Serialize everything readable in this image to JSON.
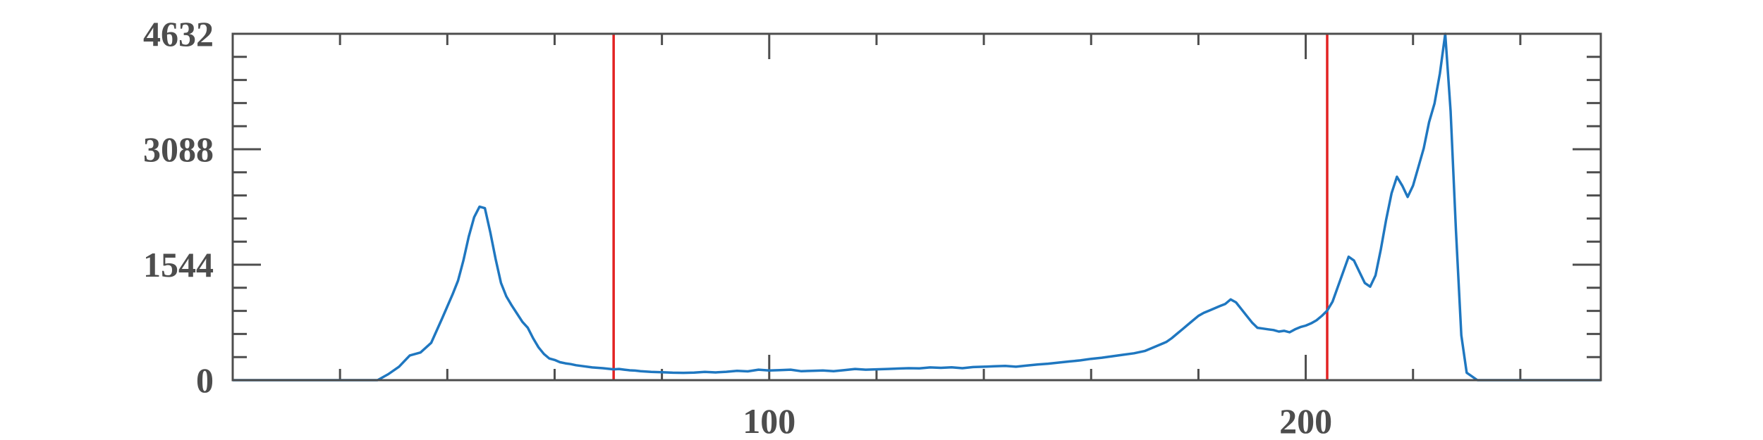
{
  "chart_data": {
    "type": "line",
    "title": "",
    "xlabel": "",
    "ylabel": "",
    "xlim": [
      0,
      255
    ],
    "ylim": [
      0,
      4632
    ],
    "x_ticks": [
      100,
      200
    ],
    "x_tick_labels": [
      "100",
      "200"
    ],
    "y_ticks": [
      0,
      1544,
      3088,
      4632
    ],
    "y_tick_labels": [
      "0",
      "1544",
      "3088",
      "4632"
    ],
    "x_minor_ticks": [
      20,
      40,
      60,
      80,
      120,
      140,
      160,
      180,
      220,
      240
    ],
    "y_minor_ticks": [
      308.8,
      617.6,
      926.4,
      1235.2,
      1852.8,
      2161.6,
      2470.4,
      2779.2,
      3396.8,
      3705.6,
      4014.4,
      4323.2
    ],
    "grid": false,
    "line_color": "#1f77c0",
    "threshold_color": "#e32222",
    "thresholds": [
      71,
      204
    ],
    "series": [
      {
        "x": [
          0,
          10,
          20,
          27,
          29,
          31,
          33,
          35,
          37,
          39,
          41,
          42,
          43,
          44,
          45,
          46,
          47,
          48,
          49,
          50,
          51,
          52,
          53,
          54,
          55,
          56,
          57,
          58,
          59,
          60,
          61,
          62,
          63,
          64,
          65,
          67,
          69,
          71,
          72,
          73,
          74,
          75,
          76,
          77,
          78,
          79,
          80,
          82,
          84,
          86,
          88,
          90,
          92,
          94,
          96,
          98,
          100,
          102,
          104,
          106,
          108,
          110,
          112,
          114,
          116,
          118,
          120,
          122,
          124,
          126,
          128,
          130,
          132,
          134,
          136,
          138,
          140,
          142,
          144,
          146,
          148,
          150,
          152,
          154,
          156,
          158,
          160,
          162,
          164,
          166,
          168,
          170,
          172,
          174,
          175,
          176,
          177,
          178,
          179,
          180,
          181,
          182,
          183,
          184,
          185,
          186,
          187,
          188,
          189,
          190,
          191,
          192,
          193,
          194,
          195,
          196,
          197,
          198,
          199,
          200,
          201,
          202,
          203,
          204,
          205,
          206,
          207,
          208,
          209,
          210,
          211,
          212,
          213,
          214,
          215,
          216,
          217,
          218,
          219,
          220,
          221,
          222,
          223,
          224,
          225,
          226,
          227,
          228,
          229,
          230,
          232,
          240,
          255
        ],
        "y": [
          0,
          0,
          0,
          0,
          80,
          180,
          330,
          370,
          500,
          820,
          1150,
          1330,
          1600,
          1920,
          2180,
          2320,
          2300,
          1980,
          1620,
          1300,
          1120,
          1000,
          890,
          780,
          700,
          560,
          440,
          350,
          290,
          270,
          240,
          225,
          215,
          200,
          190,
          170,
          160,
          145,
          150,
          140,
          132,
          128,
          120,
          115,
          110,
          108,
          105,
          100,
          98,
          102,
          110,
          104,
          112,
          125,
          118,
          140,
          130,
          135,
          140,
          120,
          125,
          130,
          120,
          135,
          150,
          140,
          145,
          150,
          155,
          160,
          158,
          170,
          165,
          172,
          160,
          175,
          180,
          185,
          190,
          180,
          195,
          210,
          220,
          235,
          250,
          265,
          285,
          300,
          320,
          340,
          360,
          390,
          450,
          510,
          560,
          620,
          680,
          740,
          800,
          860,
          900,
          930,
          960,
          990,
          1020,
          1080,
          1040,
          950,
          860,
          770,
          700,
          690,
          680,
          670,
          650,
          660,
          640,
          680,
          710,
          730,
          760,
          800,
          860,
          930,
          1050,
          1250,
          1450,
          1650,
          1600,
          1450,
          1300,
          1250,
          1400,
          1750,
          2150,
          2500,
          2720,
          2600,
          2450,
          2600,
          2850,
          3100,
          3450,
          3700,
          4100,
          4632,
          3600,
          2000,
          600,
          100,
          0,
          0,
          0
        ]
      }
    ]
  }
}
